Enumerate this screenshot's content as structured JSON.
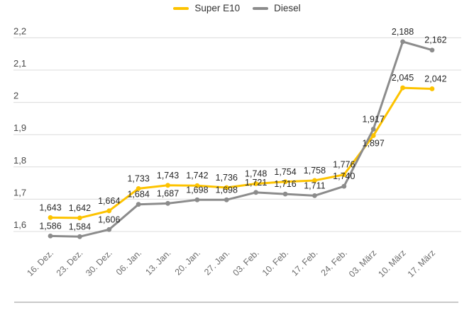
{
  "legend": {
    "items": [
      {
        "label": "Super E10",
        "color": "#fdc300"
      },
      {
        "label": "Diesel",
        "color": "#8c8c8c"
      }
    ]
  },
  "chart_data": {
    "type": "line",
    "categories": [
      "16. Dez.",
      "23. Dez.",
      "30. Dez.",
      "06. Jan.",
      "13. Jan.",
      "20. Jan.",
      "27. Jan.",
      "03. Feb.",
      "10. Feb.",
      "17. Feb.",
      "24. Feb.",
      "03. März",
      "10. März",
      "17. März"
    ],
    "series": [
      {
        "name": "Super E10",
        "color": "#fdc300",
        "values": [
          1.643,
          1.642,
          1.664,
          1.733,
          1.743,
          1.742,
          1.736,
          1.748,
          1.754,
          1.758,
          1.776,
          1.897,
          2.045,
          2.042
        ],
        "label_below_indices": [
          11
        ]
      },
      {
        "name": "Diesel",
        "color": "#8c8c8c",
        "values": [
          1.586,
          1.584,
          1.606,
          1.684,
          1.687,
          1.698,
          1.698,
          1.721,
          1.716,
          1.711,
          1.74,
          1.917,
          2.188,
          2.162
        ],
        "label_below_indices": []
      }
    ],
    "yticks": [
      {
        "value": 1.6,
        "label": "1,6"
      },
      {
        "value": 1.7,
        "label": "1,7"
      },
      {
        "value": 1.8,
        "label": "1,8"
      },
      {
        "value": 1.9,
        "label": "1,9"
      },
      {
        "value": 2.0,
        "label": "2"
      },
      {
        "value": 2.1,
        "label": "2,1"
      },
      {
        "value": 2.2,
        "label": "2,2"
      }
    ],
    "ylim": [
      1.6,
      2.2
    ],
    "grid": true,
    "legend_position": "top",
    "decimal_separator": ","
  }
}
